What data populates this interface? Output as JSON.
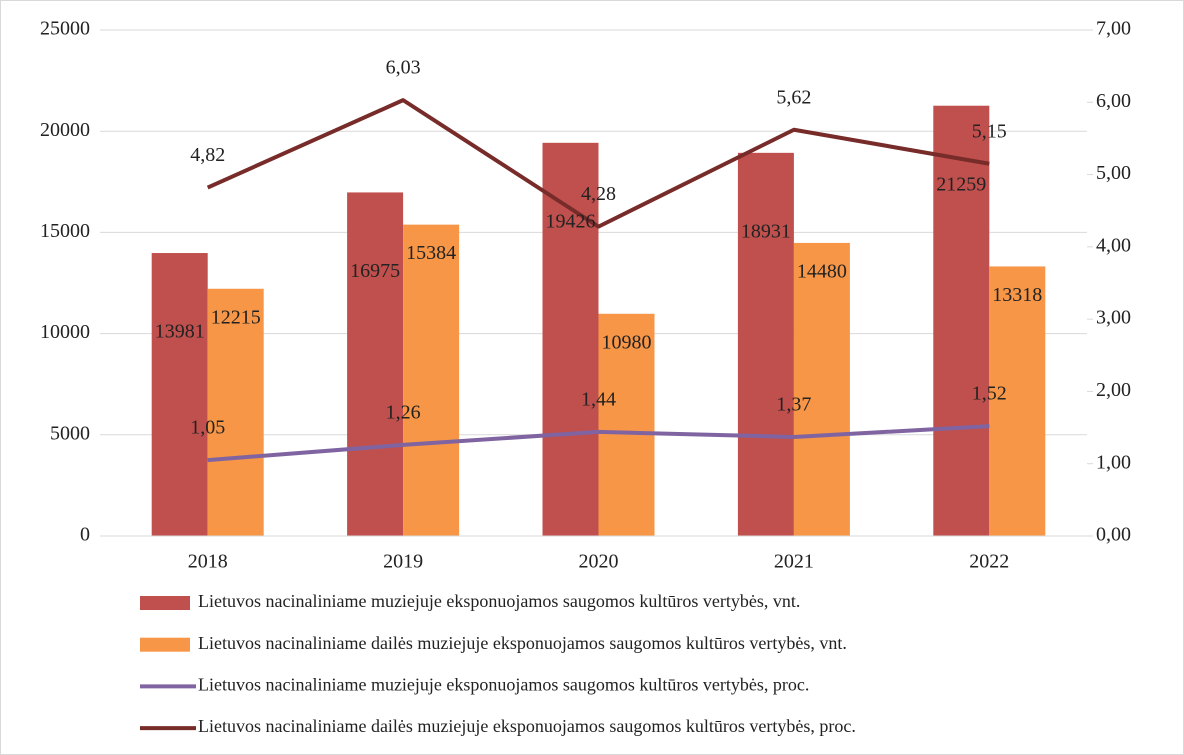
{
  "chart_data": {
    "type": "bar",
    "categories": [
      "2018",
      "2019",
      "2020",
      "2021",
      "2022"
    ],
    "series": [
      {
        "name": "Lietuvos nacinaliniame muziejuje eksponuojamos saugomos kultūros vertybės, vnt.",
        "type": "bar",
        "color": "#c0504d",
        "values": [
          13981,
          16975,
          19426,
          18931,
          21259
        ]
      },
      {
        "name": "Lietuvos nacinaliniame dailės muziejuje eksponuojamos saugomos kultūros vertybės, vnt.",
        "type": "bar",
        "color": "#f79646",
        "values": [
          12215,
          15384,
          10980,
          14480,
          13318
        ]
      },
      {
        "name": "Lietuvos nacinaliniame muziejuje eksponuojamos saugomos kultūros vertybės, proc.",
        "type": "line",
        "axis": "y2",
        "color": "#8064a2",
        "values": [
          1.05,
          1.26,
          1.44,
          1.37,
          1.52
        ],
        "value_labels": [
          "1,05",
          "1,26",
          "1,44",
          "1,37",
          "1,52"
        ]
      },
      {
        "name": "Lietuvos nacinaliniame dailės muziejuje eksponuojamos saugomos kultūros vertybės, proc.",
        "type": "line",
        "axis": "y2",
        "color": "#772c2a",
        "values": [
          4.82,
          6.03,
          4.28,
          5.62,
          5.15
        ],
        "value_labels": [
          "4,82",
          "6,03",
          "4,28",
          "5,62",
          "5,15"
        ]
      }
    ],
    "ylim": [
      0,
      25000
    ],
    "yticks": [
      0,
      5000,
      10000,
      15000,
      20000,
      25000
    ],
    "y2lim": [
      0,
      7
    ],
    "y2ticks": [
      {
        "value": 0,
        "label": "0,00"
      },
      {
        "value": 1,
        "label": "1,00"
      },
      {
        "value": 2,
        "label": "2,00"
      },
      {
        "value": 3,
        "label": "3,00"
      },
      {
        "value": 4,
        "label": "4,00"
      },
      {
        "value": 5,
        "label": "5,00"
      },
      {
        "value": 6,
        "label": "6,00"
      },
      {
        "value": 7,
        "label": "7,00"
      }
    ],
    "grid": true,
    "legend": "bottom"
  }
}
